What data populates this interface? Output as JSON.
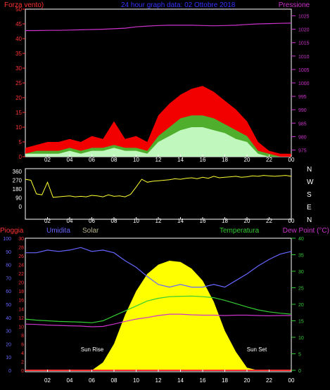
{
  "header": {
    "left_label": "Forza vento)",
    "title": "24 hour graph data: 02 Ottobre 2018",
    "right_label": "Pressione"
  },
  "colors": {
    "background": "#000000",
    "frame": "#ffffff",
    "wind_axis": "#ff3333",
    "pressure_axis": "#cc33cc",
    "title": "#3333ff",
    "gust": "#ff0000",
    "wind_avg": "#33cc33",
    "wind_speed": "#ccffcc",
    "pressure_line": "#cc33cc",
    "direction": "#ffff33",
    "humidity": "#6666ff",
    "solar": "#ffff00",
    "temperature": "#33cc33",
    "dew_point": "#cc33cc",
    "rain": "#ff3333",
    "hour_label": "#ffffff",
    "compass": "#ffffff"
  },
  "hour_labels": [
    "02",
    "04",
    "06",
    "08",
    "10",
    "12",
    "14",
    "16",
    "18",
    "20",
    "22",
    "00"
  ],
  "chart_data": [
    {
      "type": "area",
      "name": "wind-pressure",
      "wind_axis_ticks": [
        0,
        5,
        10,
        15,
        20,
        25,
        30,
        35,
        40,
        45,
        50
      ],
      "pressure_axis_ticks": [
        975,
        980,
        985,
        990,
        995,
        1000,
        1005,
        1010,
        1015,
        1020,
        1025
      ],
      "ylim_wind": [
        0,
        50
      ],
      "ylim_pressure": [
        972.5,
        1027.5
      ],
      "x_hours": [
        0,
        1,
        2,
        3,
        4,
        5,
        6,
        7,
        8,
        9,
        10,
        11,
        12,
        13,
        14,
        15,
        16,
        17,
        18,
        19,
        20,
        21,
        22,
        23,
        24
      ],
      "series": [
        {
          "name": "Pressione",
          "values": [
            1019.5,
            1019.5,
            1019.6,
            1019.6,
            1019.7,
            1019.8,
            1019.9,
            1020.0,
            1020.2,
            1020.4,
            1020.9,
            1021.2,
            1021.4,
            1021.5,
            1021.5,
            1021.5,
            1021.4,
            1021.3,
            1021.4,
            1021.5,
            1021.8,
            1022.0,
            1022.1,
            1022.2,
            1022.3
          ]
        },
        {
          "name": "gust",
          "values": [
            3,
            4,
            5,
            5,
            6,
            5,
            7,
            6,
            12,
            6,
            7,
            5,
            14,
            18,
            21,
            23,
            24,
            22,
            19,
            16,
            12,
            5,
            2,
            1,
            1
          ]
        },
        {
          "name": "wind-avg",
          "values": [
            1,
            2,
            2,
            2,
            3,
            2,
            3,
            3,
            4,
            3,
            3,
            2,
            7,
            10,
            13,
            14,
            14,
            13,
            11,
            9,
            7,
            2,
            1,
            0,
            0
          ]
        },
        {
          "name": "wind-speed",
          "values": [
            1,
            1,
            1,
            1,
            2,
            1,
            2,
            2,
            3,
            2,
            2,
            1,
            5,
            7,
            9,
            10,
            10,
            9,
            8,
            6,
            5,
            1,
            0,
            0,
            0
          ]
        }
      ]
    },
    {
      "type": "line",
      "name": "wind-direction",
      "axis_ticks": [
        0,
        90,
        180,
        270,
        360
      ],
      "compass_labels": [
        "N",
        "W",
        "S",
        "E",
        "N"
      ],
      "ylim": [
        0,
        360
      ],
      "x_hours": [
        0,
        0.5,
        1,
        1.5,
        2,
        2.5,
        3,
        3.5,
        4,
        4.5,
        5,
        5.5,
        6,
        6.5,
        7,
        7.5,
        8,
        8.5,
        9,
        9.5,
        10,
        10.5,
        11,
        11.5,
        12,
        12.5,
        13,
        13.5,
        14,
        14.5,
        15,
        15.5,
        16,
        16.5,
        17,
        17.5,
        18,
        18.5,
        19,
        19.5,
        20,
        20.5,
        21,
        21.5,
        22,
        22.5,
        23,
        23.5,
        24
      ],
      "values": [
        280,
        270,
        130,
        120,
        250,
        95,
        100,
        105,
        110,
        100,
        105,
        100,
        115,
        110,
        100,
        120,
        105,
        110,
        100,
        125,
        200,
        280,
        250,
        260,
        265,
        270,
        275,
        285,
        280,
        290,
        295,
        285,
        300,
        290,
        310,
        295,
        300,
        305,
        310,
        300,
        305,
        315,
        310,
        320,
        315,
        310,
        315,
        320,
        310
      ]
    },
    {
      "type": "line",
      "name": "weather-conditions",
      "axis_labels": {
        "rain": "Pioggia",
        "humidity": "Umidita",
        "solar": "Solar",
        "temperature": "Temperatura",
        "dew_point": "Dew Point (°C)"
      },
      "humidity_ticks": [
        0,
        10,
        20,
        30,
        40,
        50,
        60,
        70,
        80,
        90,
        100
      ],
      "rain_ticks": [
        0,
        2,
        4,
        6,
        8,
        10,
        12,
        14,
        16,
        18,
        20,
        22,
        24,
        26,
        28,
        30
      ],
      "temperature_ticks": [
        0,
        5,
        10,
        15,
        20,
        25,
        30,
        35,
        40
      ],
      "ylim_humidity": [
        0,
        100
      ],
      "ylim_temperature": [
        0,
        40
      ],
      "ylim_solar": [
        0,
        1000
      ],
      "sun_rise_label": "Sun Rise",
      "sun_set_label": "Sun Set",
      "x_hours": [
        0,
        1,
        2,
        3,
        4,
        5,
        6,
        7,
        8,
        9,
        10,
        11,
        12,
        13,
        14,
        15,
        16,
        17,
        18,
        19,
        20,
        21,
        22,
        23,
        24
      ],
      "series": [
        {
          "name": "Umidita",
          "values": [
            89,
            89,
            91,
            90,
            91,
            93,
            90,
            91,
            89,
            83,
            78,
            71,
            65,
            63,
            65,
            63,
            63,
            65,
            63,
            68,
            73,
            79,
            84,
            88,
            90
          ]
        },
        {
          "name": "Solar",
          "values": [
            0,
            0,
            0,
            0,
            0,
            0,
            0,
            60,
            200,
            420,
            600,
            730,
            800,
            830,
            820,
            770,
            680,
            520,
            300,
            140,
            20,
            0,
            0,
            0,
            0
          ]
        },
        {
          "name": "Temperatura",
          "values": [
            15.5,
            15.2,
            15.0,
            14.8,
            14.7,
            14.6,
            14.4,
            15.0,
            16.5,
            18.0,
            19.5,
            21.0,
            21.8,
            22.3,
            22.4,
            22.5,
            22.3,
            22.0,
            21.2,
            20.2,
            19.2,
            18.3,
            17.7,
            17.3,
            17.0
          ]
        },
        {
          "name": "Dew Point (°C)",
          "values": [
            14.0,
            13.9,
            13.7,
            13.6,
            13.5,
            13.4,
            13.2,
            13.3,
            14.0,
            14.8,
            15.5,
            16.0,
            16.6,
            17.0,
            17.0,
            16.8,
            16.7,
            16.7,
            16.6,
            16.7,
            16.7,
            16.6,
            16.5,
            16.6,
            16.6
          ]
        },
        {
          "name": "Pioggia",
          "values": [
            0,
            0,
            0,
            0,
            0,
            0,
            0,
            0,
            0,
            0,
            0,
            0,
            0,
            0,
            0,
            0,
            0,
            0,
            0,
            0,
            0,
            0,
            0,
            0,
            0
          ]
        }
      ]
    }
  ]
}
